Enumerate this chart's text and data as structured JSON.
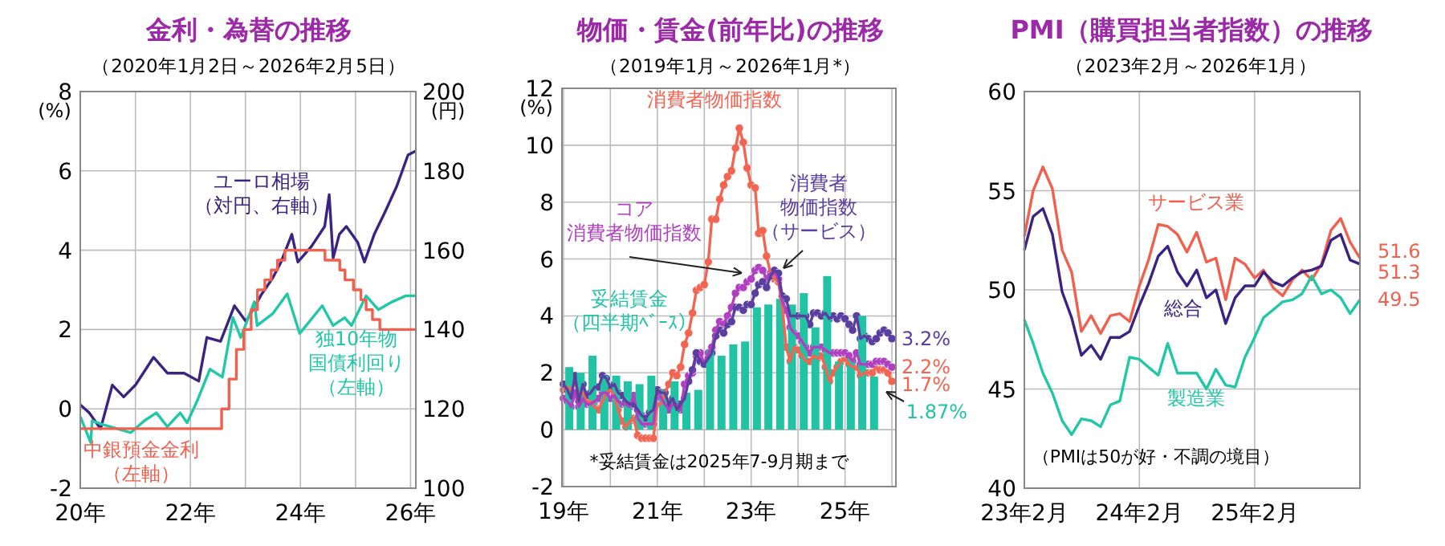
{
  "chart_data": [
    {
      "type": "line",
      "title": "金利・為替の推移",
      "subtitle": "（2020年1月2日～2026年2月5日）",
      "ylabel": "(%)",
      "y2label": "(円)",
      "xlim": [
        "2020-01-01",
        "2026-02-05"
      ],
      "xticks": [
        {
          "value": "2020-01-01",
          "label": "20年"
        },
        {
          "value": "2021-01-01",
          "label": null
        },
        {
          "value": "2022-01-01",
          "label": "22年"
        },
        {
          "value": "2023-01-01",
          "label": null
        },
        {
          "value": "2024-01-01",
          "label": "24年"
        },
        {
          "value": "2025-01-01",
          "label": null
        },
        {
          "value": "2026-01-01",
          "label": "26年"
        }
      ],
      "ylim": [
        -2,
        8
      ],
      "yticks": [
        -2,
        0,
        2,
        4,
        6,
        8
      ],
      "y2lim": [
        100,
        200
      ],
      "y2ticks": [
        100,
        120,
        140,
        160,
        180,
        200
      ],
      "grid": true,
      "legend": false,
      "series": [
        {
          "name": "ユーロ相場（対円、右軸）",
          "color": "#3b2382",
          "axis": "y2",
          "x": [
            "2020-01-02",
            "2020-03-01",
            "2020-05-15",
            "2020-08-01",
            "2020-10-15",
            "2021-01-01",
            "2021-05-01",
            "2021-08-01",
            "2021-11-20",
            "2022-02-25",
            "2022-04-20",
            "2022-07-20",
            "2022-10-20",
            "2023-01-05",
            "2023-04-20",
            "2023-07-01",
            "2023-08-25",
            "2023-11-05",
            "2023-12-15",
            "2024-03-15",
            "2024-06-10",
            "2024-07-10",
            "2024-08-05",
            "2024-09-15",
            "2024-11-01",
            "2025-01-15",
            "2025-03-01",
            "2025-05-05",
            "2025-07-20",
            "2025-09-30",
            "2025-12-15",
            "2026-02-05"
          ],
          "values": [
            121,
            119,
            115,
            126,
            123,
            126,
            133,
            129,
            129,
            127,
            138,
            137,
            146,
            142,
            149,
            153,
            157,
            164,
            157,
            161,
            166,
            174,
            158,
            164,
            166,
            162,
            157,
            164,
            170,
            176,
            184,
            185
          ]
        },
        {
          "name": "独10年物国債利回り（左軸）",
          "color": "#22c7a6",
          "x": [
            "2020-01-02",
            "2020-03-10",
            "2020-03-20",
            "2020-06-01",
            "2020-09-01",
            "2020-12-01",
            "2021-03-01",
            "2021-05-20",
            "2021-08-01",
            "2021-10-25",
            "2021-12-10",
            "2022-02-15",
            "2022-05-10",
            "2022-08-01",
            "2022-10-10",
            "2022-12-01",
            "2023-03-01",
            "2023-03-20",
            "2023-07-01",
            "2023-10-05",
            "2023-12-27",
            "2024-05-25",
            "2024-08-05",
            "2024-10-20",
            "2024-12-05",
            "2025-03-12",
            "2025-06-01",
            "2025-09-01",
            "2025-12-01",
            "2026-02-05"
          ],
          "values": [
            -0.2,
            -0.85,
            -0.3,
            -0.4,
            -0.5,
            -0.6,
            -0.3,
            -0.1,
            -0.45,
            -0.1,
            -0.35,
            0.2,
            1.0,
            0.8,
            2.3,
            1.8,
            2.7,
            2.1,
            2.4,
            2.9,
            1.9,
            2.6,
            2.1,
            2.3,
            2.1,
            2.85,
            2.5,
            2.7,
            2.85,
            2.85
          ]
        },
        {
          "name": "中銀預金金利（左軸）",
          "color": "#f0604f",
          "type": "step",
          "x": [
            "2020-01-02",
            "2022-07-27",
            "2022-09-14",
            "2022-11-02",
            "2022-12-21",
            "2023-02-08",
            "2023-03-22",
            "2023-05-10",
            "2023-06-21",
            "2023-08-02",
            "2023-09-20",
            "2024-06-12",
            "2024-09-18",
            "2024-10-23",
            "2024-12-18",
            "2025-02-05",
            "2025-03-12",
            "2025-04-23",
            "2025-06-11",
            "2026-02-05"
          ],
          "values": [
            -0.5,
            0,
            0.75,
            1.5,
            2.0,
            2.5,
            3.0,
            3.25,
            3.5,
            3.75,
            4.0,
            3.75,
            3.5,
            3.25,
            3.0,
            2.75,
            2.5,
            2.25,
            2.0,
            2.0
          ]
        }
      ]
    },
    {
      "type": "line",
      "title": "物価・賃金(前年比)の推移",
      "subtitle": "（2019年1月～2026年1月*）",
      "ylabel": "(%)",
      "xlim": [
        "2018-12-20",
        "2026-02-01"
      ],
      "xticks": [
        {
          "value": "2019-01-01",
          "label": "19年"
        },
        {
          "value": "2020-01-01",
          "label": null
        },
        {
          "value": "2021-01-01",
          "label": "21年"
        },
        {
          "value": "2022-01-01",
          "label": null
        },
        {
          "value": "2023-01-01",
          "label": "23年"
        },
        {
          "value": "2024-01-01",
          "label": null
        },
        {
          "value": "2025-01-01",
          "label": "25年"
        },
        {
          "value": "2026-01-01",
          "label": null
        }
      ],
      "ylim": [
        -2,
        12
      ],
      "yticks": [
        -2,
        0,
        2,
        4,
        6,
        8,
        10,
        12
      ],
      "grid": true,
      "legend": false,
      "marker": "circle",
      "annotations": [
        "*妥結賃金は2025年7-9月期まで",
        {
          "text": "3.2%",
          "x": "2026-01",
          "y": 3.2
        },
        {
          "text": "2.2%",
          "x": "2026-01",
          "y": 2.2
        },
        {
          "text": "1.7%",
          "x": "2026-01",
          "y": 1.7
        },
        {
          "text": "1.87%",
          "x": "2025-08-15",
          "y": 1.87
        }
      ],
      "x": [
        "2019-01",
        "2019-02",
        "2019-03",
        "2019-04",
        "2019-05",
        "2019-06",
        "2019-07",
        "2019-08",
        "2019-09",
        "2019-10",
        "2019-11",
        "2019-12",
        "2020-01",
        "2020-02",
        "2020-03",
        "2020-04",
        "2020-05",
        "2020-06",
        "2020-07",
        "2020-08",
        "2020-09",
        "2020-10",
        "2020-11",
        "2020-12",
        "2021-01",
        "2021-02",
        "2021-03",
        "2021-04",
        "2021-05",
        "2021-06",
        "2021-07",
        "2021-08",
        "2021-09",
        "2021-10",
        "2021-11",
        "2021-12",
        "2022-01",
        "2022-02",
        "2022-03",
        "2022-04",
        "2022-05",
        "2022-06",
        "2022-07",
        "2022-08",
        "2022-09",
        "2022-10",
        "2022-11",
        "2022-12",
        "2023-01",
        "2023-02",
        "2023-03",
        "2023-04",
        "2023-05",
        "2023-06",
        "2023-07",
        "2023-08",
        "2023-09",
        "2023-10",
        "2023-11",
        "2023-12",
        "2024-01",
        "2024-02",
        "2024-03",
        "2024-04",
        "2024-05",
        "2024-06",
        "2024-07",
        "2024-08",
        "2024-09",
        "2024-10",
        "2024-11",
        "2024-12",
        "2025-01",
        "2025-02",
        "2025-03",
        "2025-04",
        "2025-05",
        "2025-06",
        "2025-07",
        "2025-08",
        "2025-09",
        "2025-10",
        "2025-11",
        "2025-12",
        "2026-01"
      ],
      "series": [
        {
          "name": "消費者物価指数",
          "color": "#f26552",
          "values": [
            1.4,
            1.5,
            1.4,
            1.7,
            1.2,
            1.3,
            1.0,
            1.0,
            0.8,
            0.7,
            1.0,
            1.3,
            1.4,
            1.2,
            0.7,
            0.3,
            0.1,
            0.3,
            0.4,
            -0.2,
            -0.3,
            -0.3,
            -0.3,
            -0.3,
            0.9,
            0.9,
            1.3,
            1.6,
            2.0,
            1.9,
            2.2,
            3.0,
            3.4,
            4.1,
            4.9,
            5.0,
            5.1,
            5.9,
            7.4,
            7.4,
            8.1,
            8.6,
            8.9,
            9.1,
            9.9,
            10.6,
            10.1,
            9.2,
            8.6,
            8.5,
            6.9,
            7.0,
            6.1,
            5.5,
            5.3,
            5.2,
            4.3,
            2.9,
            2.4,
            2.9,
            2.8,
            2.6,
            2.4,
            2.4,
            2.6,
            2.5,
            2.6,
            2.2,
            1.7,
            2.0,
            2.2,
            2.4,
            2.5,
            2.3,
            2.2,
            2.2,
            1.9,
            2.0,
            2.0,
            2.0,
            2.2,
            2.1,
            2.1,
            2.0,
            1.7
          ]
        },
        {
          "name": "コア消費者物価指数",
          "color": "#b040c0",
          "values": [
            1.1,
            1.0,
            0.8,
            1.3,
            0.8,
            1.1,
            0.9,
            0.9,
            1.0,
            1.1,
            1.3,
            1.3,
            1.1,
            1.2,
            1.0,
            0.9,
            0.9,
            0.8,
            1.2,
            0.4,
            0.2,
            0.2,
            0.2,
            0.2,
            1.4,
            1.1,
            0.9,
            0.7,
            0.9,
            0.9,
            0.7,
            1.6,
            1.9,
            2.0,
            2.6,
            2.7,
            2.3,
            2.7,
            2.9,
            3.5,
            3.8,
            3.7,
            4.0,
            4.3,
            4.8,
            5.0,
            5.0,
            5.2,
            5.3,
            5.6,
            5.7,
            5.6,
            5.3,
            5.5,
            5.5,
            5.3,
            4.5,
            4.2,
            3.6,
            3.4,
            3.3,
            3.1,
            2.9,
            2.7,
            2.9,
            2.9,
            2.9,
            2.8,
            2.7,
            2.7,
            2.7,
            2.7,
            2.7,
            2.6,
            2.4,
            2.7,
            2.3,
            2.3,
            2.3,
            2.3,
            2.4,
            2.4,
            2.4,
            2.3,
            2.2
          ]
        },
        {
          "name": "消費者物価指数（サービス）",
          "color": "#5b3fa0",
          "values": [
            1.6,
            1.4,
            1.1,
            1.9,
            1.0,
            1.6,
            1.2,
            1.3,
            1.5,
            1.5,
            1.9,
            1.8,
            1.5,
            1.6,
            1.3,
            1.2,
            1.0,
            0.9,
            0.9,
            0.7,
            0.5,
            0.4,
            0.6,
            0.7,
            1.4,
            1.3,
            1.3,
            0.9,
            1.1,
            0.7,
            0.9,
            1.1,
            1.7,
            2.1,
            2.7,
            2.4,
            2.3,
            2.5,
            2.7,
            3.3,
            3.5,
            3.4,
            3.7,
            3.8,
            4.3,
            4.3,
            4.2,
            4.4,
            4.4,
            4.8,
            5.1,
            5.2,
            5.0,
            5.4,
            5.6,
            5.5,
            4.7,
            4.6,
            4.0,
            4.0,
            4.0,
            4.0,
            4.0,
            3.7,
            4.1,
            4.1,
            4.0,
            4.1,
            3.9,
            4.0,
            3.9,
            4.0,
            3.9,
            3.7,
            3.5,
            4.0,
            3.2,
            3.3,
            3.2,
            3.1,
            3.2,
            3.4,
            3.5,
            3.4,
            3.2
          ]
        },
        {
          "name": "妥結賃金（四半期ﾍﾞｰｽ）",
          "color": "#22c3a5",
          "type": "bar",
          "x": [
            "2019-02-15",
            "2019-05-15",
            "2019-08-15",
            "2019-11-15",
            "2020-02-15",
            "2020-05-15",
            "2020-08-15",
            "2020-11-15",
            "2021-02-15",
            "2021-05-15",
            "2021-08-15",
            "2021-11-15",
            "2022-02-15",
            "2022-05-15",
            "2022-08-15",
            "2022-11-15",
            "2023-02-15",
            "2023-05-15",
            "2023-08-15",
            "2023-11-15",
            "2024-02-15",
            "2024-05-15",
            "2024-08-15",
            "2024-11-15",
            "2025-02-15",
            "2025-05-15",
            "2025-08-15"
          ],
          "values": [
            2.2,
            2.0,
            2.6,
            1.9,
            1.9,
            1.7,
            1.6,
            1.9,
            1.4,
            1.7,
            1.3,
            1.4,
            2.8,
            2.6,
            3.0,
            3.1,
            4.3,
            4.4,
            4.6,
            4.4,
            4.8,
            3.6,
            5.4,
            2.4,
            2.5,
            4.0,
            1.87
          ]
        }
      ]
    },
    {
      "type": "line",
      "title": "PMI（購買担当者指数）の推移",
      "subtitle": "（2023年2月～2026年1月）",
      "xlim": [
        "2023-02",
        "2026-01"
      ],
      "xticks": [
        {
          "value": "2023-02",
          "label": "23年2月"
        },
        {
          "value": "2024-02",
          "label": "24年2月"
        },
        {
          "value": "2025-02",
          "label": "25年2月"
        }
      ],
      "ylim": [
        40,
        60
      ],
      "yticks": [
        40,
        45,
        50,
        55,
        60
      ],
      "grid": true,
      "legend": false,
      "annotations": [
        "（PMIは50が好・不調の境目）",
        {
          "text": "51.6",
          "x": "2026-01",
          "y": 51.6
        },
        {
          "text": "51.3",
          "x": "2026-01",
          "y": 51.3
        },
        {
          "text": "49.5",
          "x": "2026-01",
          "y": 49.5
        }
      ],
      "x": [
        "2023-02",
        "2023-03",
        "2023-04",
        "2023-05",
        "2023-06",
        "2023-07",
        "2023-08",
        "2023-09",
        "2023-10",
        "2023-11",
        "2023-12",
        "2024-01",
        "2024-02",
        "2024-03",
        "2024-04",
        "2024-05",
        "2024-06",
        "2024-07",
        "2024-08",
        "2024-09",
        "2024-10",
        "2024-11",
        "2024-12",
        "2025-01",
        "2025-02",
        "2025-03",
        "2025-04",
        "2025-05",
        "2025-06",
        "2025-07",
        "2025-08",
        "2025-09",
        "2025-10",
        "2025-11",
        "2025-12",
        "2026-01"
      ],
      "series": [
        {
          "name": "サービス業",
          "color": "#f0604f",
          "values": [
            52.7,
            55.0,
            56.2,
            55.1,
            52.0,
            50.9,
            47.9,
            48.7,
            47.8,
            48.7,
            48.8,
            48.4,
            50.2,
            51.5,
            53.3,
            53.2,
            52.8,
            51.9,
            52.9,
            51.4,
            51.6,
            49.5,
            51.6,
            51.3,
            50.6,
            51.0,
            50.1,
            49.7,
            50.5,
            51.0,
            50.5,
            51.3,
            53.0,
            53.6,
            52.4,
            51.6
          ]
        },
        {
          "name": "総合",
          "color": "#3b2382",
          "values": [
            52.0,
            53.7,
            54.1,
            52.8,
            49.9,
            48.6,
            46.7,
            47.2,
            46.5,
            47.6,
            47.6,
            47.9,
            49.2,
            50.3,
            51.7,
            52.2,
            50.9,
            50.2,
            51.0,
            49.6,
            50.0,
            48.3,
            49.6,
            50.2,
            50.2,
            50.9,
            50.4,
            50.2,
            50.6,
            50.9,
            51.0,
            51.2,
            52.5,
            52.8,
            51.5,
            51.3
          ]
        },
        {
          "name": "製造業",
          "color": "#22c7a6",
          "values": [
            48.5,
            47.3,
            45.8,
            44.8,
            43.4,
            42.7,
            43.5,
            43.4,
            43.1,
            44.2,
            44.4,
            46.6,
            46.5,
            46.1,
            45.7,
            47.3,
            45.8,
            45.8,
            45.8,
            45.0,
            46.0,
            45.2,
            45.1,
            46.6,
            47.6,
            48.6,
            49.0,
            49.4,
            49.5,
            49.8,
            50.7,
            49.8,
            50.0,
            49.6,
            48.8,
            49.5
          ]
        }
      ]
    }
  ]
}
